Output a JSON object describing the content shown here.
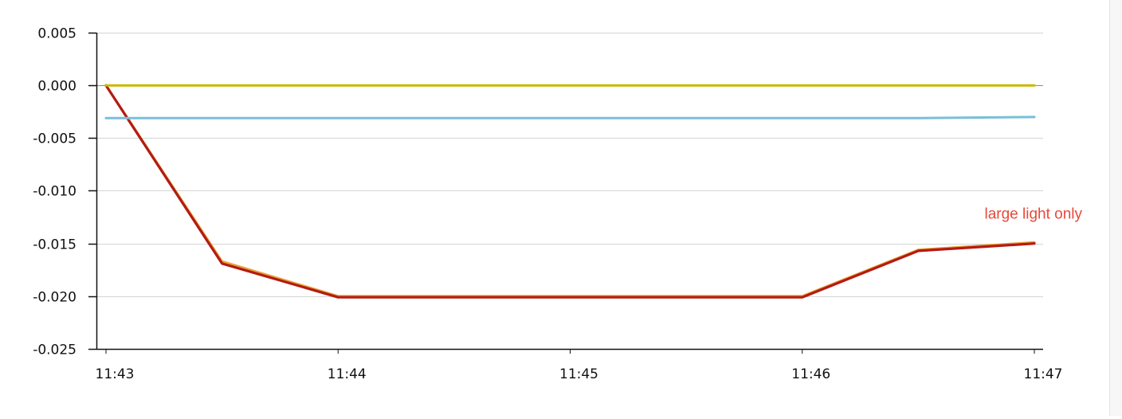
{
  "chart_data": {
    "type": "line",
    "x": [
      "11:43",
      "11:43:30",
      "11:44",
      "11:44:30",
      "11:45",
      "11:45:30",
      "11:46",
      "11:46:30",
      "11:47"
    ],
    "x_ticks": [
      "11:43",
      "11:44",
      "11:45",
      "11:46",
      "11:47"
    ],
    "y_ticks": [
      "0.005",
      "0.000",
      "-0.005",
      "-0.010",
      "-0.015",
      "-0.020",
      "-0.025"
    ],
    "ylim": [
      -0.025,
      0.005
    ],
    "grid": true,
    "series": [
      {
        "color": "#e8a33a",
        "values": [
          0.0,
          -0.0167,
          -0.02,
          -0.02,
          -0.02,
          -0.02,
          -0.02,
          -0.0156,
          -0.0149
        ]
      },
      {
        "color": "#b31b13",
        "values": [
          0.0,
          -0.0169,
          -0.0201,
          -0.0201,
          -0.0201,
          -0.0201,
          -0.0201,
          -0.0157,
          -0.015
        ]
      },
      {
        "color": "#c9b800",
        "values": [
          0.0,
          0.0,
          0.0,
          0.0,
          0.0,
          0.0,
          0.0,
          0.0,
          0.0
        ]
      },
      {
        "color": "#78bfd9",
        "values": [
          -0.0031,
          -0.0031,
          -0.0031,
          -0.0031,
          -0.0031,
          -0.0031,
          -0.0031,
          -0.0031,
          -0.003
        ]
      }
    ],
    "annotations": [
      {
        "text": "large light only",
        "color": "#e8483a",
        "anchor_x": "11:47",
        "anchor_y": -0.0128
      }
    ],
    "title": "",
    "xlabel": "",
    "ylabel": ""
  }
}
